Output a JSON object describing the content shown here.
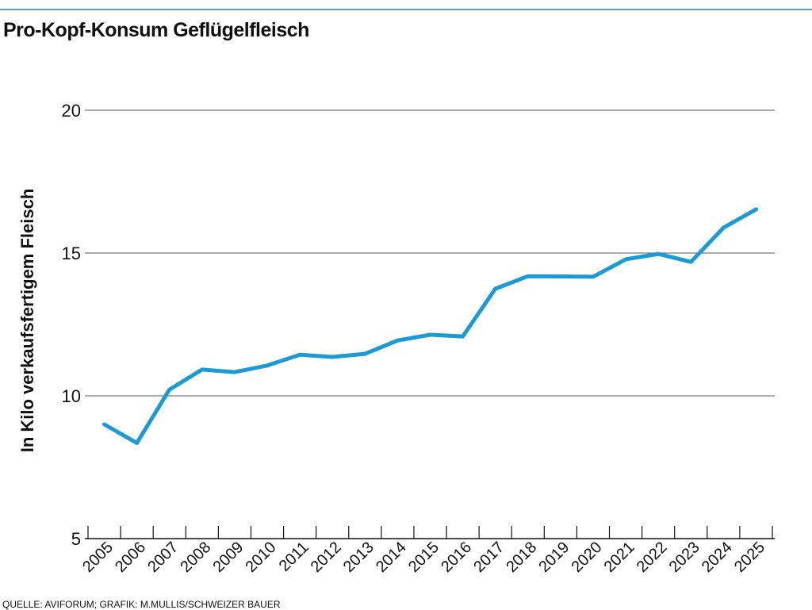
{
  "chart_data": {
    "type": "line",
    "title": "Pro-Kopf-Konsum Geflügelfleisch",
    "y_label": "In Kilo verkaufsfertigem Fleisch",
    "source": "QUELLE: AVIFORUM; GRAFIK: M.MULLIS/SCHWEIZER BAUER",
    "categories": [
      "2005",
      "2006",
      "2007",
      "2008",
      "2009",
      "2010",
      "2011",
      "2012",
      "2013",
      "2014",
      "2015",
      "2016",
      "2017",
      "2018",
      "2019",
      "2020",
      "2021",
      "2022",
      "2023",
      "2024",
      "2025"
    ],
    "series": [
      {
        "color": "#1b9ad6",
        "values": [
          9.0,
          8.35,
          10.22,
          10.92,
          10.83,
          11.06,
          11.44,
          11.36,
          11.47,
          11.94,
          12.14,
          12.08,
          13.75,
          14.19,
          14.18,
          14.17,
          14.78,
          14.97,
          14.69,
          15.89,
          16.53
        ]
      }
    ],
    "ylim": [
      5,
      20
    ],
    "yticks": [
      5,
      10,
      15,
      20
    ],
    "grid": true
  }
}
